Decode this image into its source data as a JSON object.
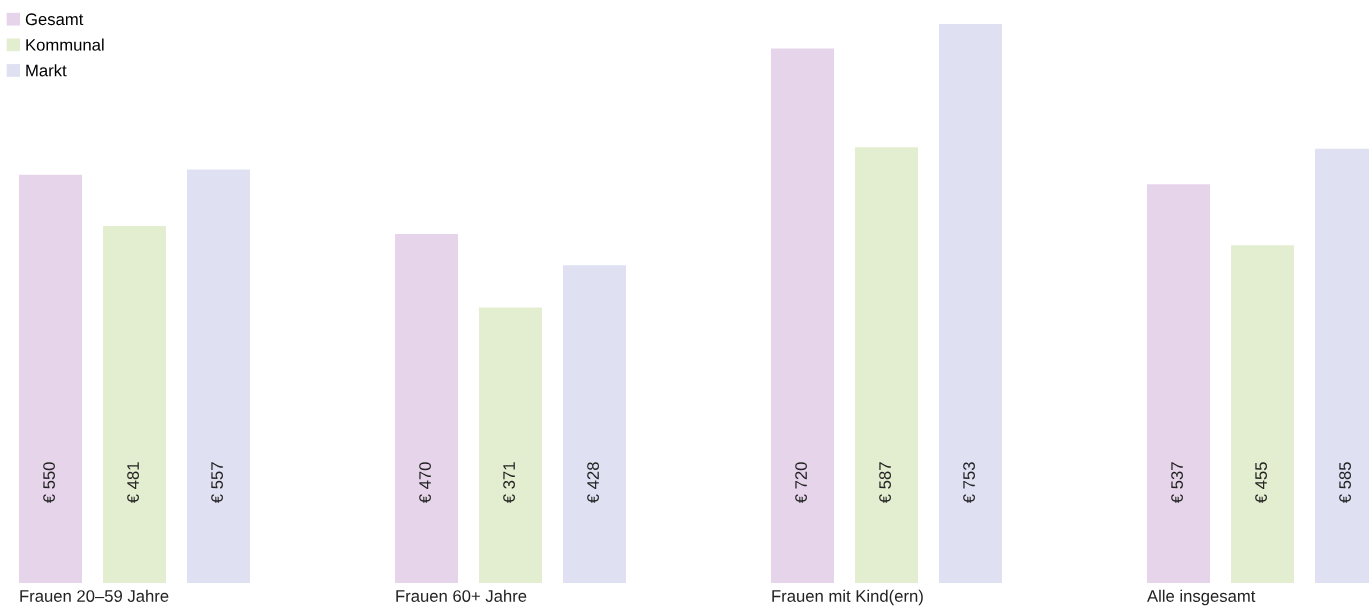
{
  "chart_data": {
    "type": "bar",
    "categories": [
      "Frauen 20–59 Jahre",
      "Frauen 60+ Jahre",
      "Frauen mit Kind(ern)",
      "Alle insgesamt"
    ],
    "series": [
      {
        "name": "Gesamt",
        "color": "#e6d5ea",
        "values": [
          550,
          470,
          720,
          537
        ],
        "value_labels": [
          "€ 550",
          "€ 470",
          "€ 720",
          "€ 537"
        ]
      },
      {
        "name": "Kommunal",
        "color": "#e3edcf",
        "values": [
          481,
          371,
          587,
          455
        ],
        "value_labels": [
          "€ 481",
          "€ 371",
          "€ 587",
          "€ 455"
        ]
      },
      {
        "name": "Markt",
        "color": "#dfe1f3",
        "values": [
          557,
          428,
          753,
          585
        ],
        "value_labels": [
          "€ 557",
          "€ 428",
          "€ 753",
          "€ 585"
        ]
      }
    ],
    "legend": "top left"
  }
}
